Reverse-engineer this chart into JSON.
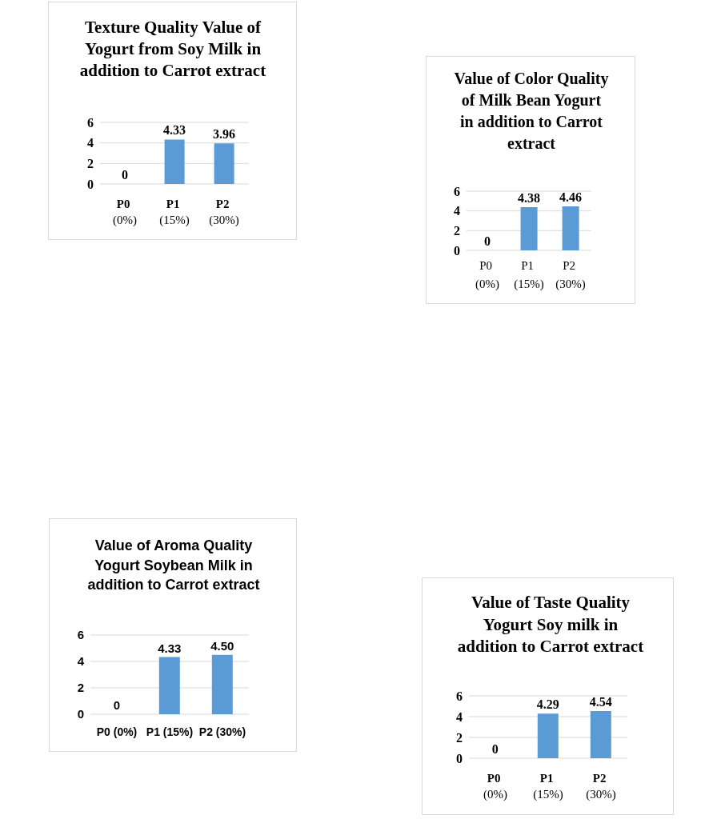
{
  "chart_data": [
    {
      "type": "bar",
      "title": "Texture Quality Value of Yogurt from Soy Milk in addition to Carrot extract",
      "categories": [
        "P0 (0%)",
        "P1 (15%)",
        "P2 (30%)"
      ],
      "values": [
        0,
        4.33,
        3.96
      ],
      "color": "#5b9bd5",
      "ylim": [
        0,
        6
      ],
      "yticks": [
        0,
        2,
        4,
        6
      ],
      "grid": "y",
      "data_labels": true
    },
    {
      "type": "bar",
      "title": "Value of Color Quality of Milk Bean Yogurt in addition to Carrot extract",
      "categories": [
        "P0 (0%)",
        "P1 (15%)",
        "P2 (30%)"
      ],
      "values": [
        0,
        4.38,
        4.46
      ],
      "color": "#5b9bd5",
      "ylim": [
        0,
        6
      ],
      "yticks": [
        0,
        2,
        4,
        6
      ],
      "grid": "y",
      "data_labels": true
    },
    {
      "type": "bar",
      "title": "Value of Aroma Quality Yogurt Soybean Milk in addition to Carrot extract",
      "categories": [
        "P0 (0%)",
        "P1 (15%)",
        "P2 (30%)"
      ],
      "values": [
        0,
        4.33,
        4.5
      ],
      "value_labels": [
        "0",
        "4.33",
        "4.50"
      ],
      "color": "#5b9bd5",
      "ylim": [
        0,
        6
      ],
      "yticks": [
        0,
        2,
        4,
        6
      ],
      "grid": "y"
    },
    {
      "type": "bar",
      "title": "Value of Taste Quality Yogurt Soy milk in addition to Carrot extract",
      "categories": [
        "P0 (0%)",
        "P1 (15%)",
        "P2 (30%)"
      ],
      "values": [
        0,
        4.29,
        4.54
      ],
      "color": "#5b9bd5",
      "ylim": [
        0,
        6
      ],
      "yticks": [
        0,
        2,
        4,
        6
      ],
      "grid": "y",
      "data_labels": true
    }
  ]
}
